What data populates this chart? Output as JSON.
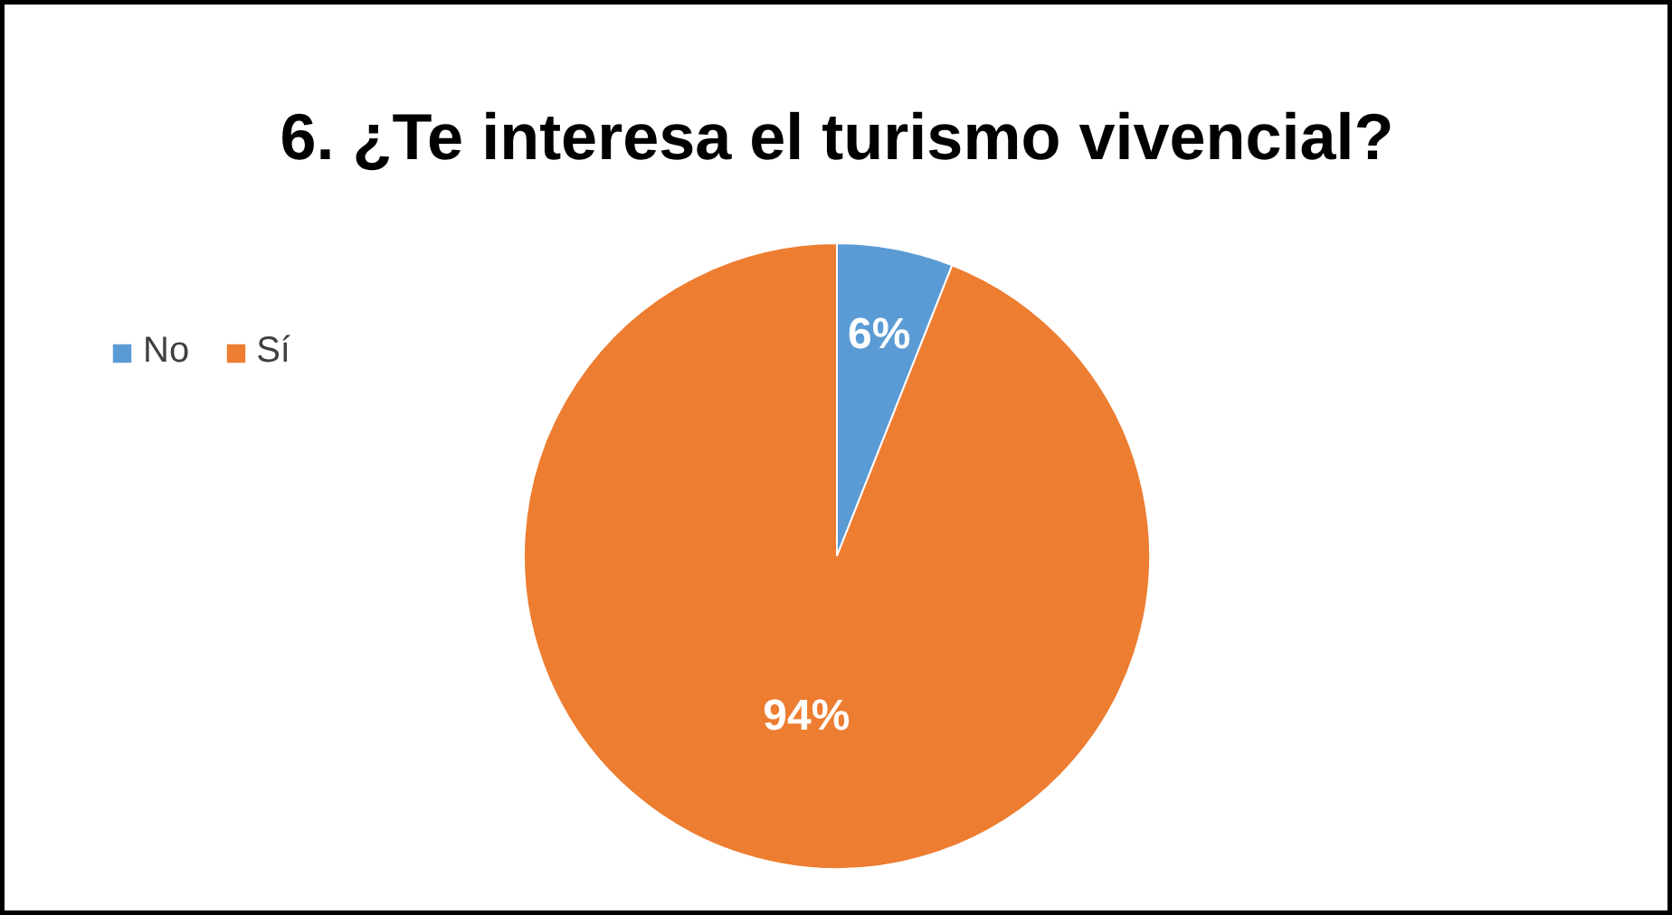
{
  "chart_data": {
    "type": "pie",
    "title": "6. ¿Te interesa el turismo vivencial?",
    "categories": [
      "No",
      "Sí"
    ],
    "values": [
      6,
      94
    ],
    "colors": [
      "#5b9bd5",
      "#ed7d31"
    ],
    "value_labels": [
      "6%",
      "94%"
    ],
    "legend": "top left"
  }
}
